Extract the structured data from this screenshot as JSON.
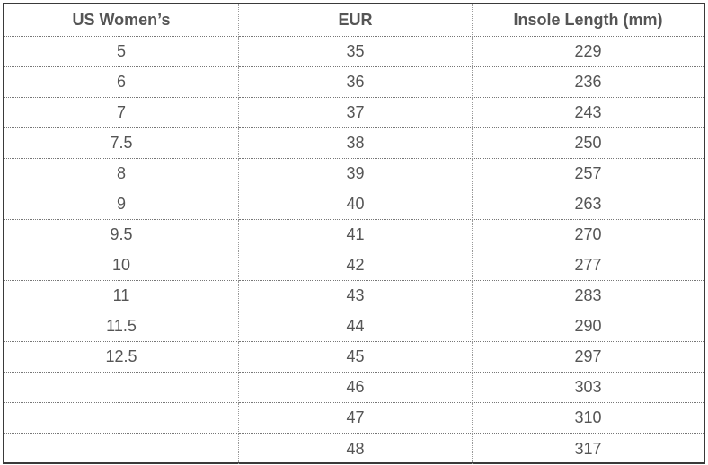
{
  "table": {
    "header": [
      "US Women’s",
      "EUR",
      "Insole Length (mm)"
    ],
    "rows": [
      [
        "5",
        "35",
        "229"
      ],
      [
        "6",
        "36",
        "236"
      ],
      [
        "7",
        "37",
        "243"
      ],
      [
        "7.5",
        "38",
        "250"
      ],
      [
        "8",
        "39",
        "257"
      ],
      [
        "9",
        "40",
        "263"
      ],
      [
        "9.5",
        "41",
        "270"
      ],
      [
        "10",
        "42",
        "277"
      ],
      [
        "11",
        "43",
        "283"
      ],
      [
        "11.5",
        "44",
        "290"
      ],
      [
        "12.5",
        "45",
        "297"
      ],
      [
        null,
        "46",
        "303"
      ],
      [
        null,
        "47",
        "310"
      ],
      [
        null,
        "48",
        "317"
      ]
    ]
  }
}
